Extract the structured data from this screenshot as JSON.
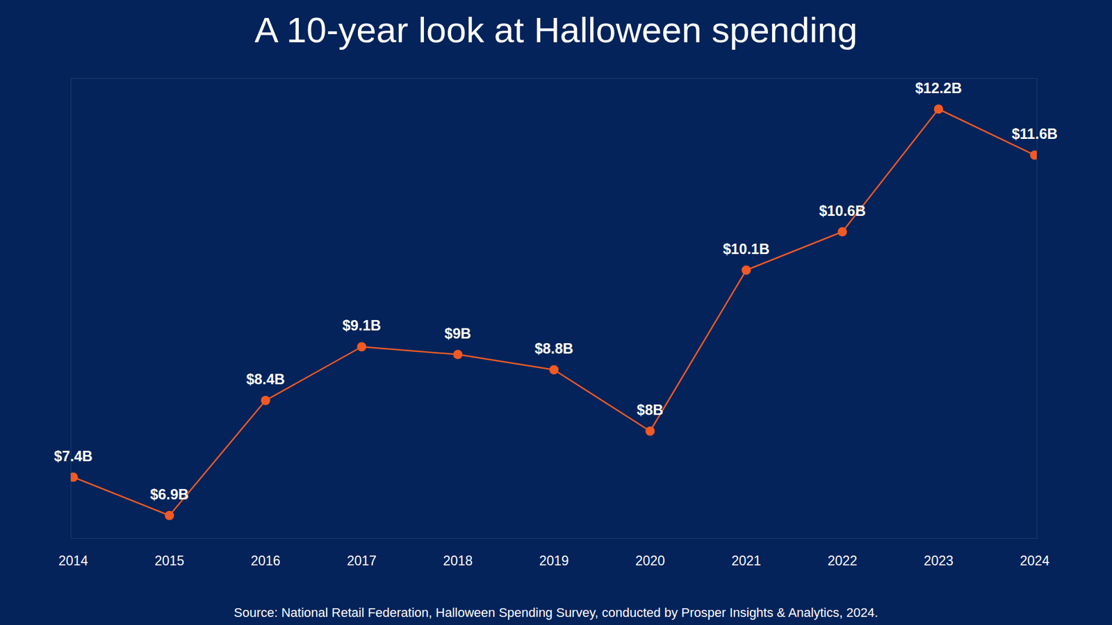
{
  "chart_data": {
    "type": "line",
    "title": "A 10-year look at Halloween spending",
    "caption": "Source: National Retail Federation, Halloween Spending Survey, conducted by Prosper Insights & Analytics, 2024.",
    "categories": [
      "2014",
      "2015",
      "2016",
      "2017",
      "2018",
      "2019",
      "2020",
      "2021",
      "2022",
      "2023",
      "2024"
    ],
    "values": [
      7.4,
      6.9,
      8.4,
      9.1,
      9,
      8.8,
      8,
      10.1,
      10.6,
      12.2,
      11.6
    ],
    "value_labels": [
      "$7.4B",
      "$6.9B",
      "$8.4B",
      "$9.1B",
      "$9B",
      "$8.8B",
      "$8B",
      "$10.1B",
      "$10.6B",
      "$12.2B",
      "$11.6B"
    ],
    "data_labels": true,
    "color": "#f15a24",
    "marker": "circle",
    "line_style": "solid",
    "ylim": [
      6.6,
      12.6
    ],
    "grid": false,
    "tick_labels": "x"
  }
}
